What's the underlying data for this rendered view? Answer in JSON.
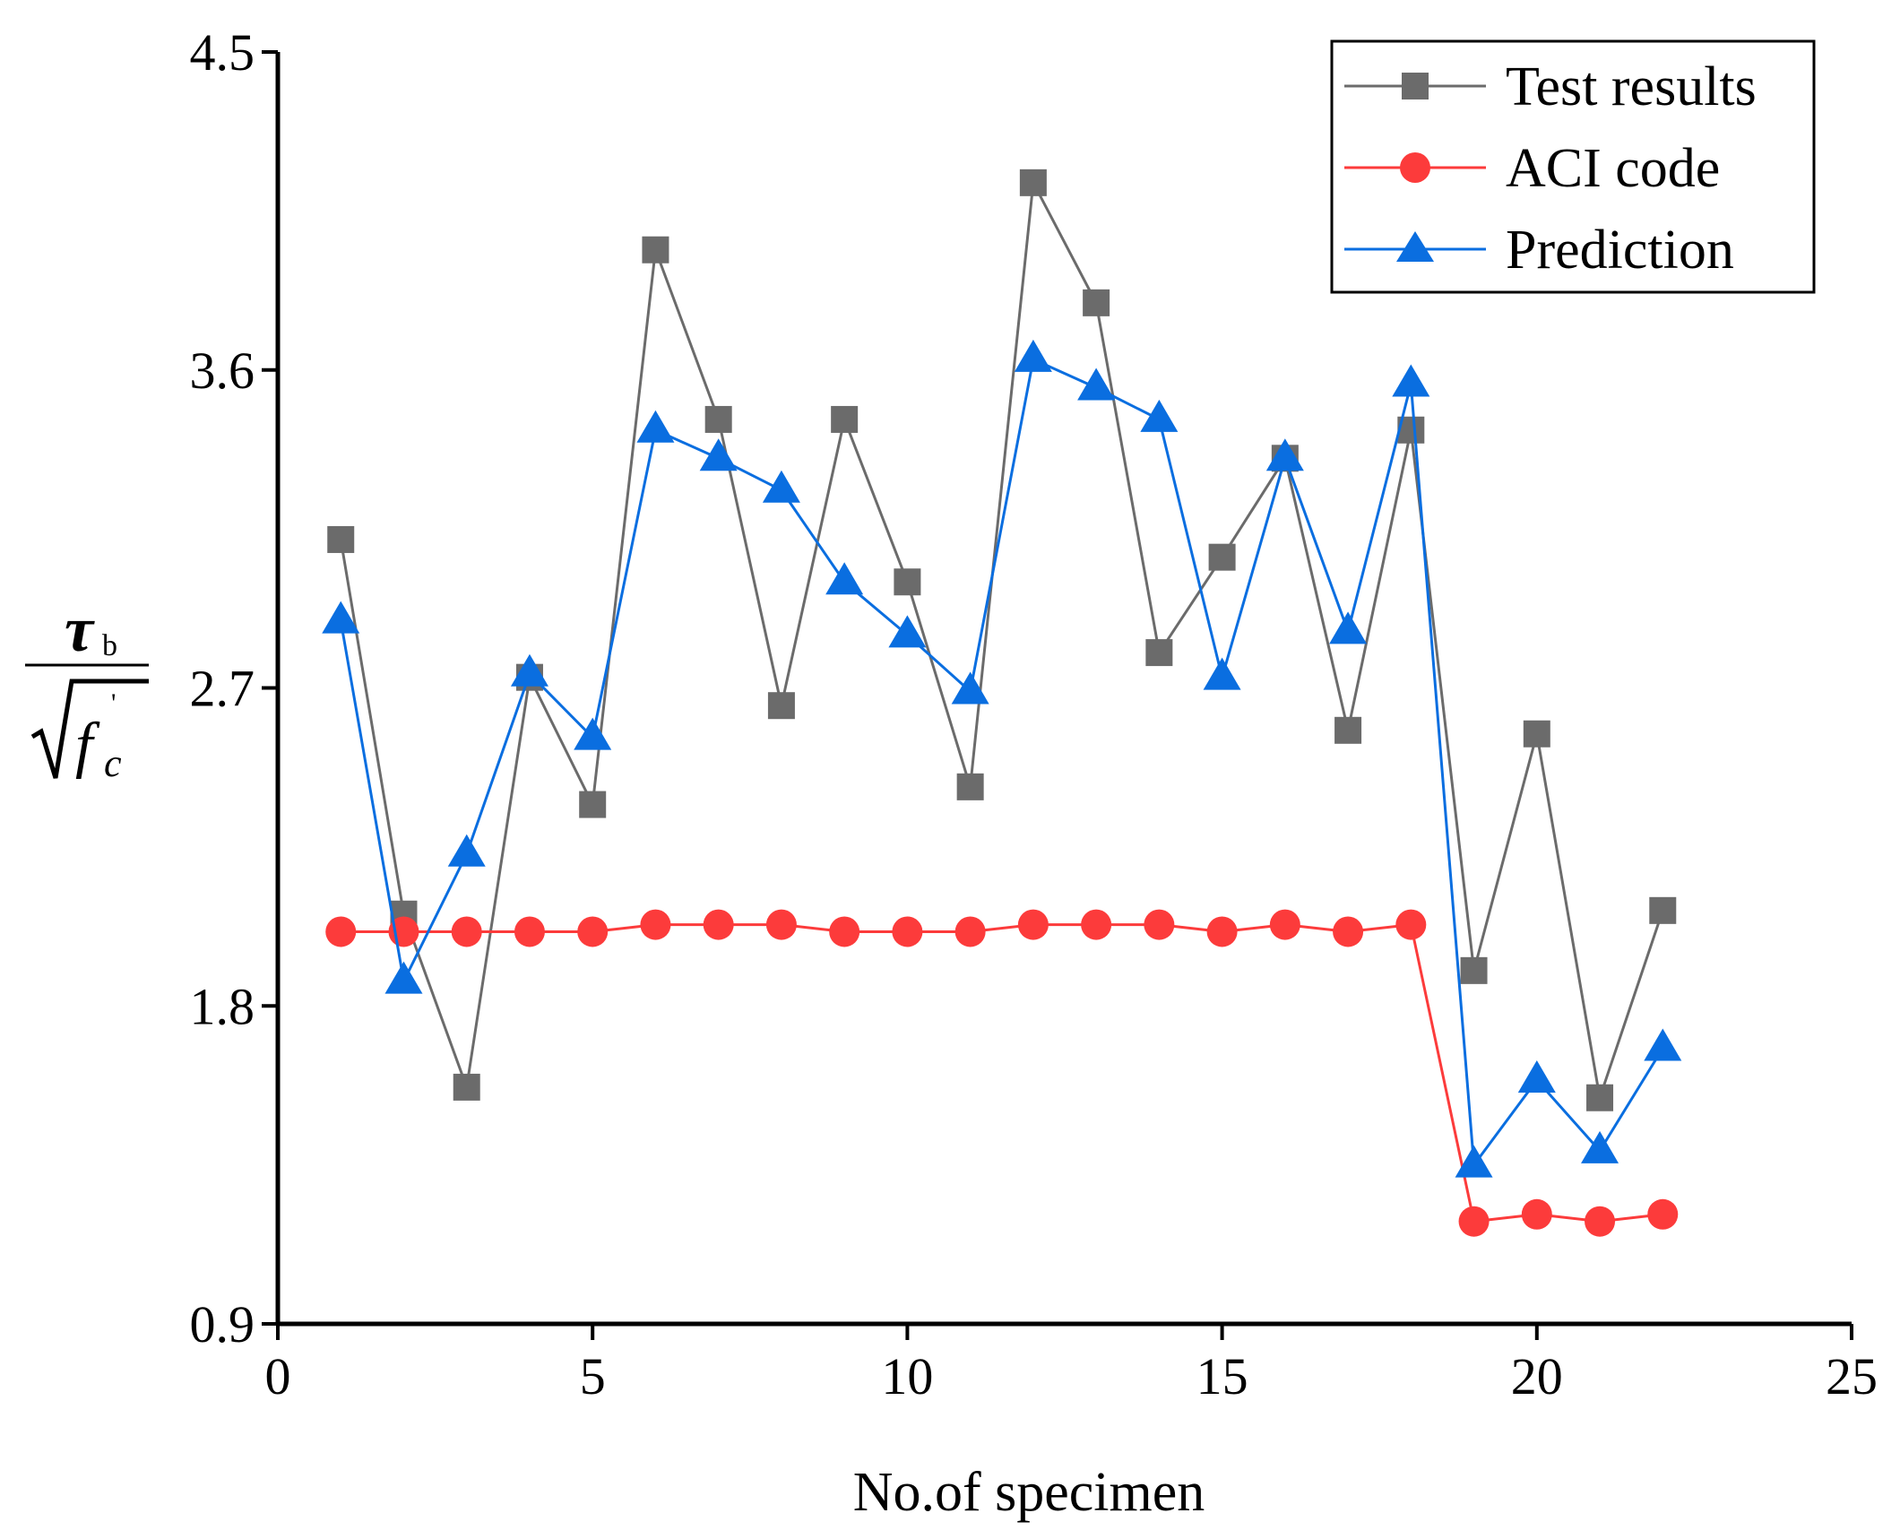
{
  "chart_data": {
    "type": "line",
    "title": "",
    "xlabel": "No.of specimen",
    "ylabel": {
      "numerator": "τ",
      "numerator_subscript": "b",
      "denominator_base": "f",
      "denominator_subscript": "c",
      "denominator_superscript": "'"
    },
    "xlim": [
      0,
      25
    ],
    "ylim": [
      0.9,
      4.5
    ],
    "xticks": [
      0,
      5,
      10,
      15,
      20,
      25
    ],
    "xtick_labels": [
      "0",
      "5",
      "10",
      "15",
      "20",
      "25"
    ],
    "yticks": [
      0.9,
      1.8,
      2.7,
      3.6,
      4.5
    ],
    "ytick_labels": [
      "0.9",
      "1.8",
      "2.7",
      "3.6",
      "4.5"
    ],
    "legend_position": "top-right",
    "x": [
      1,
      2,
      3,
      4,
      5,
      6,
      7,
      8,
      9,
      10,
      11,
      12,
      13,
      14,
      15,
      16,
      17,
      18,
      19,
      20,
      21,
      22
    ],
    "series": [
      {
        "name": "Test results",
        "color": "#6b6b6b",
        "marker": "square",
        "values": [
          3.12,
          2.06,
          1.57,
          2.73,
          2.37,
          3.94,
          3.46,
          2.65,
          3.46,
          3.0,
          2.42,
          4.13,
          3.79,
          2.8,
          3.07,
          3.35,
          2.58,
          3.43,
          1.9,
          2.57,
          1.54,
          2.07
        ]
      },
      {
        "name": "ACI code",
        "color": "#fc3b3b",
        "marker": "circle",
        "values": [
          2.01,
          2.01,
          2.01,
          2.01,
          2.01,
          2.03,
          2.03,
          2.03,
          2.01,
          2.01,
          2.01,
          2.03,
          2.03,
          2.03,
          2.01,
          2.03,
          2.01,
          2.03,
          1.19,
          1.21,
          1.19,
          1.21
        ]
      },
      {
        "name": "Prediction",
        "color": "#0a6ee0",
        "marker": "triangle",
        "values": [
          2.89,
          1.87,
          2.23,
          2.74,
          2.56,
          3.43,
          3.35,
          3.26,
          3.0,
          2.85,
          2.69,
          3.63,
          3.55,
          3.46,
          2.73,
          3.35,
          2.86,
          3.56,
          1.35,
          1.59,
          1.39,
          1.68
        ]
      }
    ]
  }
}
